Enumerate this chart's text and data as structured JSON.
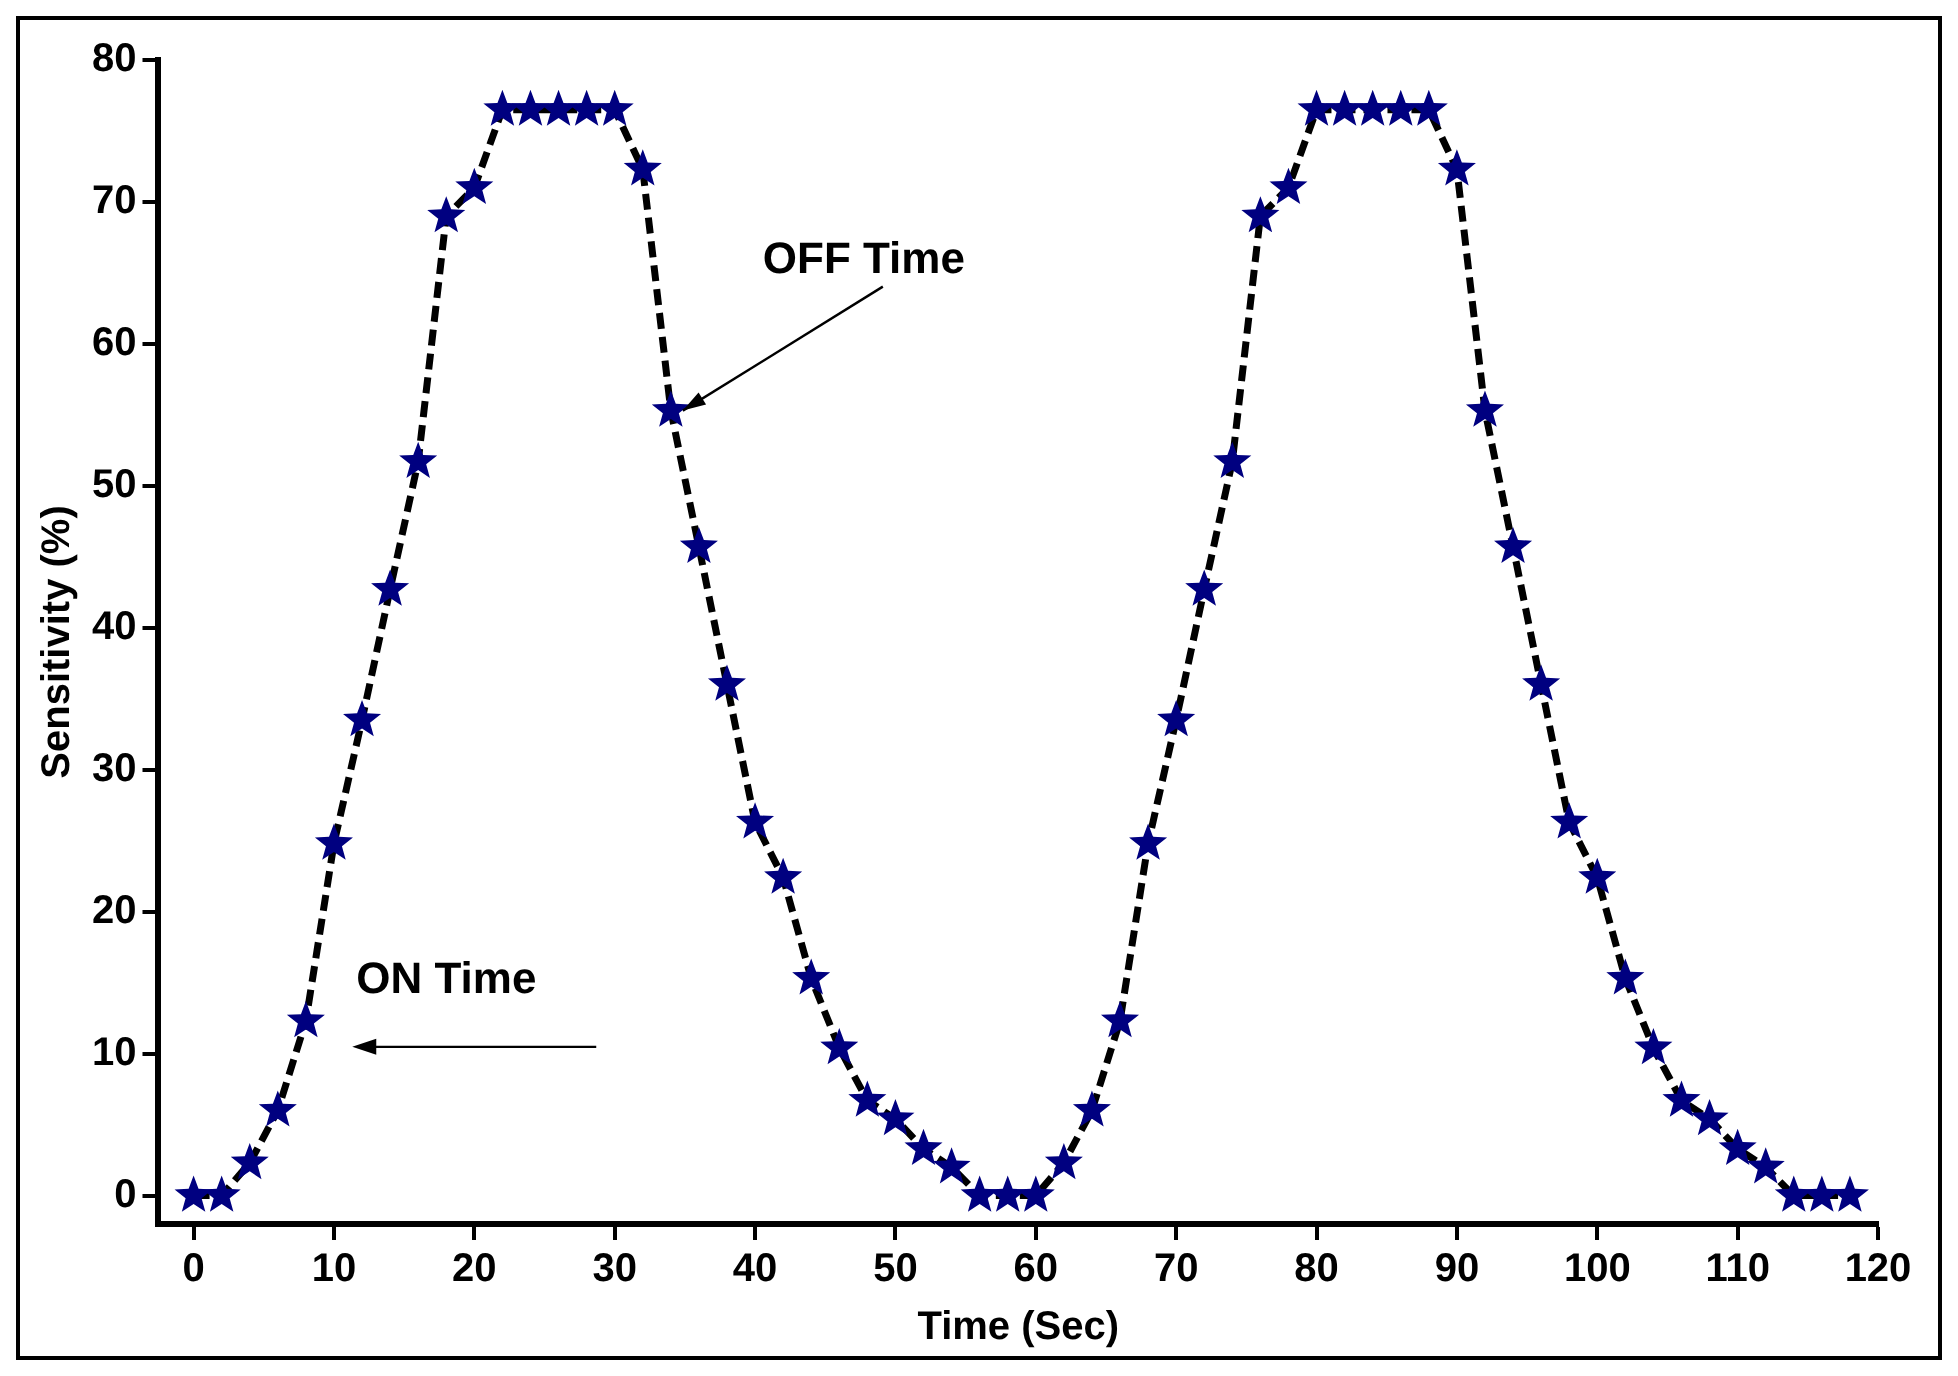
{
  "chart_data": {
    "type": "line",
    "xlabel": "Time (Sec)",
    "ylabel": "Sensitivity (%)",
    "x": [
      0,
      2,
      4,
      6,
      8,
      10,
      12,
      14,
      16,
      18,
      20,
      22,
      24,
      26,
      28,
      30,
      32,
      34,
      36,
      38,
      40,
      42,
      44,
      46,
      48,
      50,
      52,
      54,
      56,
      58,
      60,
      62,
      64,
      66,
      68,
      70,
      72,
      74,
      76,
      78,
      80,
      82,
      84,
      86,
      88,
      90,
      92,
      94,
      96,
      98,
      100,
      102,
      104,
      106,
      108,
      110,
      112,
      114,
      116,
      118
    ],
    "series": [
      {
        "color": "#000080",
        "values": [
          0,
          0,
          2.3,
          6,
          12.3,
          24.8,
          33.5,
          42.7,
          51.7,
          69,
          71,
          76.5,
          76.5,
          76.5,
          76.5,
          76.5,
          72.3,
          55.3,
          45.7,
          36,
          26.3,
          22.4,
          15.3,
          10.4,
          6.7,
          5.4,
          3.3,
          2,
          0,
          0,
          0,
          2.3,
          6,
          12.3,
          24.8,
          33.5,
          42.7,
          51.7,
          69,
          71,
          76.5,
          76.5,
          76.5,
          76.5,
          76.5,
          72.3,
          55.3,
          45.7,
          36,
          26.3,
          22.4,
          15.3,
          10.4,
          6.7,
          5.4,
          3.3,
          2,
          0,
          0,
          0
        ]
      }
    ],
    "xlim": [
      -2.5,
      120
    ],
    "xticks": [
      0,
      10,
      20,
      30,
      40,
      50,
      60,
      70,
      80,
      90,
      100,
      110,
      120
    ],
    "ylim": [
      -2,
      80
    ],
    "yticks": [
      0,
      10,
      20,
      30,
      40,
      50,
      60,
      70,
      80
    ],
    "marker": "star",
    "line_style": "dashed",
    "grid": false,
    "legend": false,
    "annotations": [
      {
        "text": "OFF Time",
        "x": 34,
        "y": 55.3
      },
      "ON Time"
    ]
  }
}
